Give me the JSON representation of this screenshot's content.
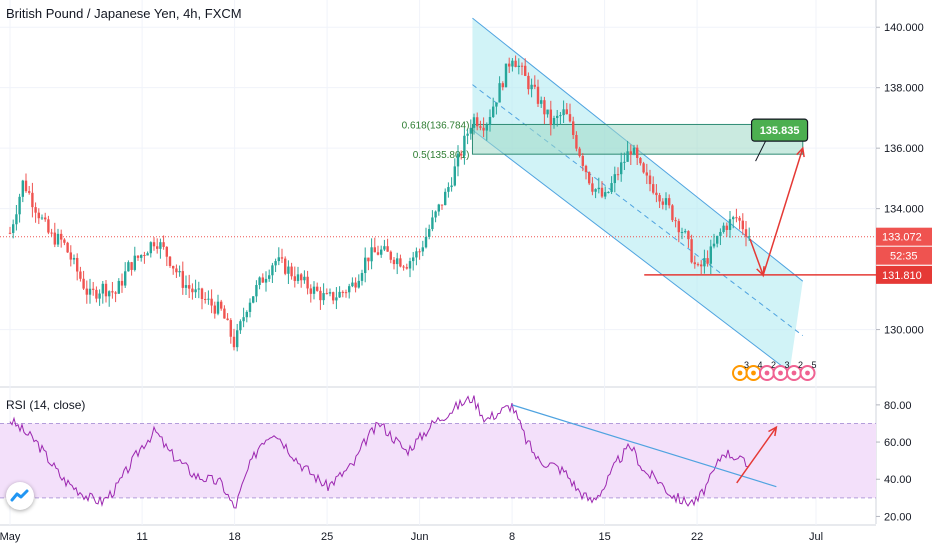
{
  "header": {
    "title": "British Pound / Japanese Yen, 4h, FXCM",
    "rsi_title": "RSI (14, close)"
  },
  "colors": {
    "up": "#26a69a",
    "down": "#ef5350",
    "channel_fill": "#b2ebf2",
    "channel_line": "#4fa3e0",
    "zone_fill": "#9fd8c6",
    "arrow": "#e53935",
    "rsi_line": "#9c27b0",
    "rsi_band": "#f3e0fa",
    "price_tag_current": "#ef5350",
    "target_badge": "#4caf50"
  },
  "chart_data": [
    {
      "type": "candlestick",
      "pane": "price",
      "x_axis": {
        "ticks": [
          "May",
          "11",
          "18",
          "25",
          "Jun",
          "8",
          "15",
          "22",
          "Jul"
        ],
        "tick_dates": [
          "2020-05-01",
          "2020-05-11",
          "2020-05-18",
          "2020-05-25",
          "2020-06-01",
          "2020-06-08",
          "2020-06-15",
          "2020-06-22",
          "2020-07-01"
        ]
      },
      "y_axis": {
        "ticks": [
          "140.000",
          "138.000",
          "136.000",
          "134.000",
          "130.000"
        ],
        "range": [
          128.2,
          140.9
        ]
      },
      "price_path": [
        [
          "2020-05-01",
          133.2
        ],
        [
          "2020-05-02",
          134.9
        ],
        [
          "2020-05-04",
          133.1
        ],
        [
          "2020-05-05",
          132.9
        ],
        [
          "2020-05-06",
          132.0
        ],
        [
          "2020-05-07",
          131.1
        ],
        [
          "2020-05-08",
          131.4
        ],
        [
          "2020-05-09",
          131.2
        ],
        [
          "2020-05-10",
          132.1
        ],
        [
          "2020-05-11",
          132.5
        ],
        [
          "2020-05-12",
          133.0
        ],
        [
          "2020-05-13",
          132.4
        ],
        [
          "2020-05-14",
          131.6
        ],
        [
          "2020-05-15",
          131.2
        ],
        [
          "2020-05-16",
          130.9
        ],
        [
          "2020-05-17",
          130.6
        ],
        [
          "2020-05-18",
          129.5
        ],
        [
          "2020-05-19",
          130.9
        ],
        [
          "2020-05-20",
          131.6
        ],
        [
          "2020-05-21",
          132.3
        ],
        [
          "2020-05-22",
          132.0
        ],
        [
          "2020-05-23",
          131.6
        ],
        [
          "2020-05-24",
          131.3
        ],
        [
          "2020-05-25",
          131.0
        ],
        [
          "2020-05-26",
          131.2
        ],
        [
          "2020-05-27",
          131.5
        ],
        [
          "2020-05-28",
          132.4
        ],
        [
          "2020-05-29",
          132.6
        ],
        [
          "2020-05-30",
          132.4
        ],
        [
          "2020-05-31",
          132.2
        ],
        [
          "2020-06-01",
          132.6
        ],
        [
          "2020-06-02",
          133.6
        ],
        [
          "2020-06-03",
          134.5
        ],
        [
          "2020-06-04",
          135.7
        ],
        [
          "2020-06-05",
          137.0
        ],
        [
          "2020-06-06",
          136.8
        ],
        [
          "2020-06-07",
          137.9
        ],
        [
          "2020-06-08",
          139.1
        ],
        [
          "2020-06-09",
          138.3
        ],
        [
          "2020-06-10",
          137.6
        ],
        [
          "2020-06-11",
          136.8
        ],
        [
          "2020-06-12",
          137.2
        ],
        [
          "2020-06-13",
          136.0
        ],
        [
          "2020-06-14",
          134.8
        ],
        [
          "2020-06-15",
          134.3
        ],
        [
          "2020-06-16",
          135.2
        ],
        [
          "2020-06-17",
          136.0
        ],
        [
          "2020-06-18",
          135.0
        ],
        [
          "2020-06-19",
          134.6
        ],
        [
          "2020-06-20",
          133.9
        ],
        [
          "2020-06-21",
          133.2
        ],
        [
          "2020-06-22",
          131.9
        ],
        [
          "2020-06-23",
          132.5
        ],
        [
          "2020-06-24",
          133.4
        ],
        [
          "2020-06-25",
          133.7
        ],
        [
          "2020-06-26",
          133.1
        ]
      ],
      "current_price": {
        "value": 133.072,
        "label": "133.072",
        "countdown": "52:35"
      },
      "dotted_line": 133.072,
      "support": {
        "value": 131.81,
        "label": "131.810",
        "from": "2020-06-18",
        "to": "2020-06-30"
      },
      "fib": [
        {
          "label": "0.618(136.784)",
          "value": 136.784
        },
        {
          "label": "0.5(135.801)",
          "value": 135.801
        }
      ],
      "zone": {
        "from": "2020-06-05",
        "to": "2020-06-30",
        "low": 135.801,
        "high": 136.784
      },
      "channel": {
        "upper": [
          [
            "2020-06-05",
            140.3
          ],
          [
            "2020-06-30",
            131.6
          ]
        ],
        "lower": [
          [
            "2020-06-05",
            136.6
          ],
          [
            "2020-06-29",
            128.6
          ]
        ],
        "mid": [
          [
            "2020-06-05",
            138.1
          ],
          [
            "2020-06-30",
            129.8
          ]
        ]
      },
      "projection": [
        [
          "2020-06-26",
          133.0
        ],
        [
          "2020-06-27",
          131.8
        ],
        [
          "2020-06-30",
          136.0
        ]
      ],
      "target": {
        "value": 135.835,
        "label": "135.835",
        "at": "2020-06-29"
      },
      "event_icons": [
        "3",
        "4",
        "2",
        "3",
        "2",
        "5"
      ]
    },
    {
      "type": "line",
      "pane": "rsi",
      "name": "RSI (14, close)",
      "y_axis": {
        "ticks": [
          "80.00",
          "60.00",
          "40.00",
          "20.00"
        ],
        "range": [
          17,
          88
        ]
      },
      "bands": [
        70,
        30
      ],
      "values": [
        [
          "2020-05-01",
          72
        ],
        [
          "2020-05-03",
          60
        ],
        [
          "2020-05-05",
          40
        ],
        [
          "2020-05-07",
          30
        ],
        [
          "2020-05-08",
          28
        ],
        [
          "2020-05-09",
          35
        ],
        [
          "2020-05-11",
          58
        ],
        [
          "2020-05-12",
          66
        ],
        [
          "2020-05-13",
          55
        ],
        [
          "2020-05-15",
          42
        ],
        [
          "2020-05-17",
          38
        ],
        [
          "2020-05-18",
          24
        ],
        [
          "2020-05-19",
          45
        ],
        [
          "2020-05-20",
          60
        ],
        [
          "2020-05-21",
          66
        ],
        [
          "2020-05-23",
          48
        ],
        [
          "2020-05-25",
          36
        ],
        [
          "2020-05-27",
          48
        ],
        [
          "2020-05-28",
          62
        ],
        [
          "2020-05-29",
          70
        ],
        [
          "2020-05-31",
          55
        ],
        [
          "2020-06-01",
          62
        ],
        [
          "2020-06-02",
          70
        ],
        [
          "2020-06-04",
          80
        ],
        [
          "2020-06-05",
          84
        ],
        [
          "2020-06-06",
          72
        ],
        [
          "2020-06-07",
          76
        ],
        [
          "2020-06-08",
          80
        ],
        [
          "2020-06-09",
          62
        ],
        [
          "2020-06-10",
          50
        ],
        [
          "2020-06-11",
          48
        ],
        [
          "2020-06-12",
          44
        ],
        [
          "2020-06-13",
          34
        ],
        [
          "2020-06-14",
          28
        ],
        [
          "2020-06-15",
          36
        ],
        [
          "2020-06-16",
          50
        ],
        [
          "2020-06-17",
          58
        ],
        [
          "2020-06-18",
          44
        ],
        [
          "2020-06-19",
          40
        ],
        [
          "2020-06-20",
          32
        ],
        [
          "2020-06-21",
          28
        ],
        [
          "2020-06-22",
          28
        ],
        [
          "2020-06-23",
          40
        ],
        [
          "2020-06-24",
          55
        ],
        [
          "2020-06-25",
          52
        ],
        [
          "2020-06-26",
          46
        ]
      ],
      "trendline": [
        [
          "2020-06-08",
          80
        ],
        [
          "2020-06-28",
          36
        ]
      ],
      "projection": [
        [
          "2020-06-25",
          38
        ],
        [
          "2020-06-28",
          68
        ]
      ]
    }
  ]
}
